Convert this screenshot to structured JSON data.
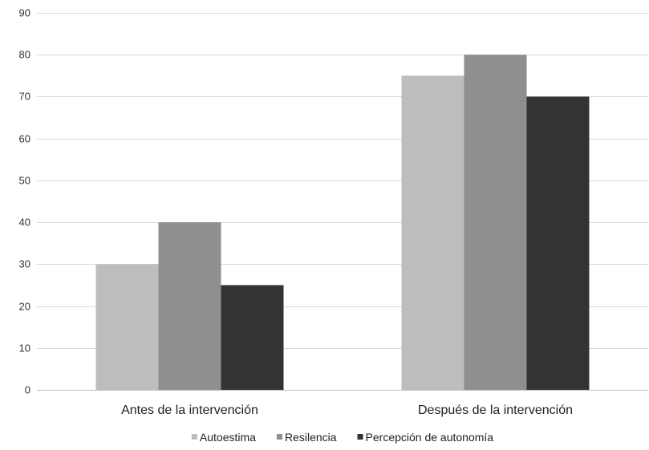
{
  "chart_data": {
    "type": "bar",
    "title": "",
    "xlabel": "",
    "ylabel": "",
    "categories": [
      "Antes de la intervención",
      "Después de la intervención"
    ],
    "series": [
      {
        "name": "Autoestima",
        "values": [
          30,
          75
        ],
        "color": "#bdbdbd"
      },
      {
        "name": "Resilencia",
        "values": [
          40,
          80
        ],
        "color": "#8f8f8f"
      },
      {
        "name": "Percepción de autonomía",
        "values": [
          25,
          70
        ],
        "color": "#333333"
      }
    ],
    "ylim": [
      0,
      90
    ],
    "yticks": [
      0,
      10,
      20,
      30,
      40,
      50,
      60,
      70,
      80,
      90
    ],
    "grid": true,
    "legend": "bottom"
  }
}
